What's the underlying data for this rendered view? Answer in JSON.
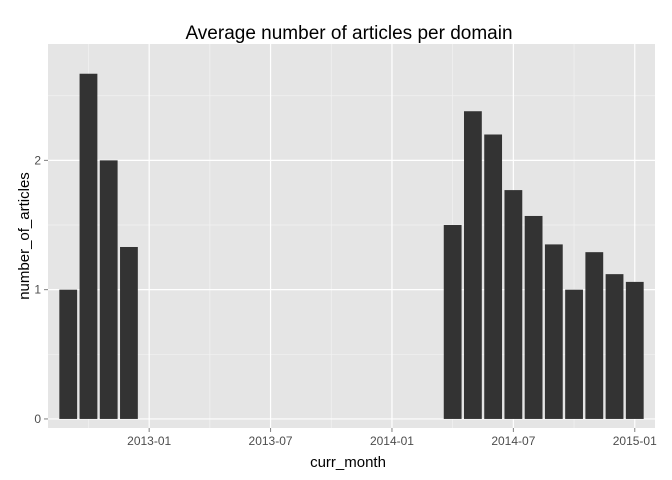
{
  "chart_data": {
    "type": "bar",
    "title": "Average number of articles per domain",
    "xlabel": "curr_month",
    "ylabel": "number_of_articles",
    "x": [
      "2012-09",
      "2012-10",
      "2012-11",
      "2012-12",
      "2014-04",
      "2014-05",
      "2014-06",
      "2014-07",
      "2014-08",
      "2014-09",
      "2014-10",
      "2014-11",
      "2014-12",
      "2015-01"
    ],
    "values": [
      1.0,
      2.67,
      2.0,
      1.33,
      1.5,
      2.38,
      2.2,
      1.77,
      1.57,
      1.35,
      1.0,
      1.29,
      1.12,
      1.06
    ],
    "x_ticks": [
      "2013-01",
      "2013-07",
      "2014-01",
      "2014-07",
      "2015-01"
    ],
    "y_ticks": [
      "0",
      "1",
      "2"
    ],
    "ylim": [
      -0.07,
      2.9
    ],
    "xlim": [
      "2012-08",
      "2015-02"
    ],
    "grid": true,
    "colors": {
      "bar": "#333333",
      "panel": "#e5e5e5",
      "grid_major": "#ffffff",
      "grid_minor": "#f2f2f2"
    }
  }
}
